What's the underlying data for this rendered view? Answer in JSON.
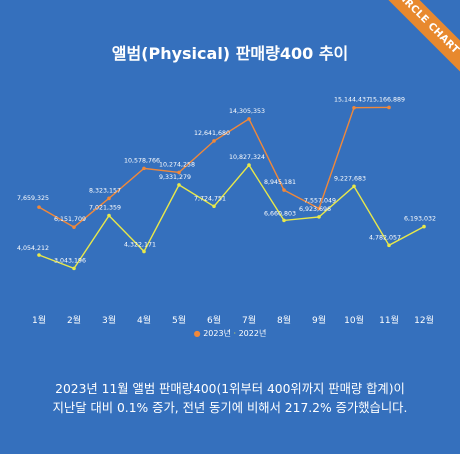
{
  "brand": {
    "ribbon_text": "CIRCLE CHART"
  },
  "chart_data": {
    "type": "line",
    "title": "앨범(Physical) 판매량400 추이",
    "categories": [
      "1월",
      "2월",
      "3월",
      "4월",
      "5월",
      "6월",
      "7월",
      "8월",
      "9월",
      "10월",
      "11월",
      "12월"
    ],
    "series": [
      {
        "name": "2023년",
        "color": "#f0883a",
        "values": [
          7659325,
          6151709,
          8323157,
          10578766,
          10274258,
          12641680,
          14305353,
          8945181,
          7557049,
          15144437,
          15166889,
          null
        ],
        "labels": [
          "7,659,325",
          "6,151,709",
          "8,323,157",
          "10,578,766",
          "10,274,258",
          "12,641,680",
          "14,305,353",
          "8,945,181",
          "7,557,049",
          "15,144,437",
          "15,166,889",
          ""
        ]
      },
      {
        "name": "2022년",
        "color": "#e8e84a",
        "values": [
          4054212,
          3043196,
          7021359,
          4322171,
          9331279,
          7724751,
          10827324,
          6660803,
          6923696,
          9227683,
          4782057,
          6193032
        ],
        "labels": [
          "4,054,212",
          "3,043,196",
          "7,021,359",
          "4,322,171",
          "9,331,279",
          "7,724,751",
          "10,827,324",
          "6,660,803",
          "6,923,696",
          "9,227,683",
          "4,782,057",
          "6,193,032"
        ]
      }
    ],
    "legend": {
      "position": "bottom",
      "separator": "·"
    },
    "grid": false
  },
  "caption": {
    "line1": "2023년 11월 앨범 판매량400(1위부터 400위까지 판매량 합계)이",
    "line2": "지난달 대비 0.1% 증가, 전년 동기에 비해서 217.2% 증가했습니다."
  }
}
